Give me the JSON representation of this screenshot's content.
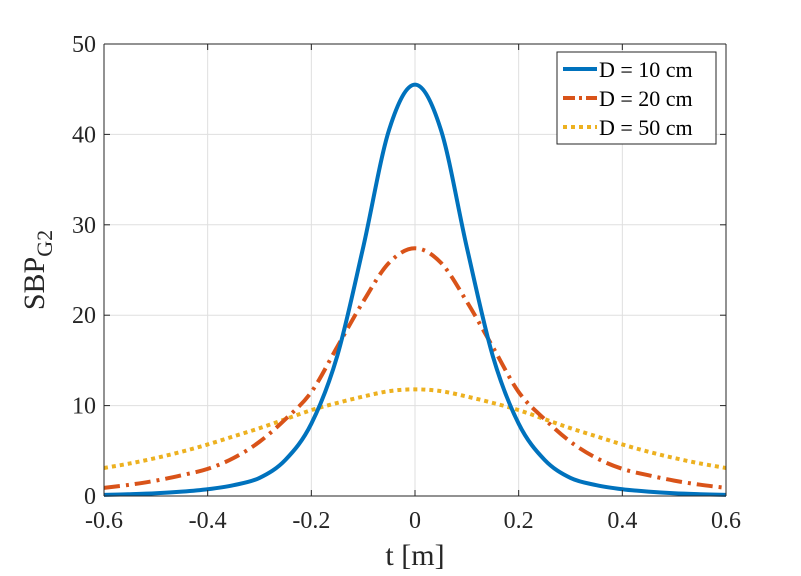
{
  "chart_data": {
    "type": "line",
    "title": "",
    "xlabel": "t [m]",
    "ylabel_main": "SBP",
    "ylabel_sub": "G2",
    "xlim": [
      -0.6,
      0.6
    ],
    "ylim": [
      0,
      50
    ],
    "x_ticks": [
      -0.6,
      -0.4,
      -0.2,
      0,
      0.2,
      0.4,
      0.6
    ],
    "x_tick_labels": [
      "-0.6",
      "-0.4",
      "-0.2",
      "0",
      "0.2",
      "0.4",
      "0.6"
    ],
    "y_ticks": [
      0,
      10,
      20,
      30,
      40,
      50
    ],
    "y_tick_labels": [
      "0",
      "10",
      "20",
      "30",
      "40",
      "50"
    ],
    "grid": true,
    "legend_position": "top-right",
    "x": [
      -0.6,
      -0.55,
      -0.5,
      -0.45,
      -0.4,
      -0.35,
      -0.3,
      -0.25,
      -0.2,
      -0.15,
      -0.1,
      -0.05,
      0,
      0.05,
      0.1,
      0.15,
      0.2,
      0.25,
      0.3,
      0.35,
      0.4,
      0.45,
      0.5,
      0.55,
      0.6
    ],
    "series": [
      {
        "name": "D = 10 cm",
        "color": "#0072BD",
        "style": "solid",
        "values": [
          0.13,
          0.2,
          0.3,
          0.48,
          0.75,
          1.2,
          2.0,
          4.0,
          8.0,
          15.5,
          27.5,
          40.5,
          45.5,
          40.5,
          27.5,
          15.5,
          8.0,
          4.0,
          2.0,
          1.2,
          0.75,
          0.48,
          0.3,
          0.2,
          0.13
        ]
      },
      {
        "name": "D = 20 cm",
        "color": "#D95319",
        "style": "dashdot",
        "values": [
          0.9,
          1.25,
          1.7,
          2.3,
          3.0,
          4.2,
          6.0,
          8.5,
          11.5,
          16.5,
          21.5,
          25.8,
          27.4,
          25.8,
          21.5,
          16.5,
          11.5,
          8.5,
          6.0,
          4.2,
          3.0,
          2.3,
          1.7,
          1.25,
          0.9
        ]
      },
      {
        "name": "D = 50 cm",
        "color": "#EDB120",
        "style": "dotted",
        "values": [
          3.1,
          3.6,
          4.2,
          4.9,
          5.7,
          6.6,
          7.5,
          8.5,
          9.5,
          10.3,
          11.0,
          11.6,
          11.8,
          11.6,
          11.0,
          10.3,
          9.5,
          8.5,
          7.5,
          6.6,
          5.7,
          4.9,
          4.2,
          3.6,
          3.1
        ]
      }
    ]
  }
}
